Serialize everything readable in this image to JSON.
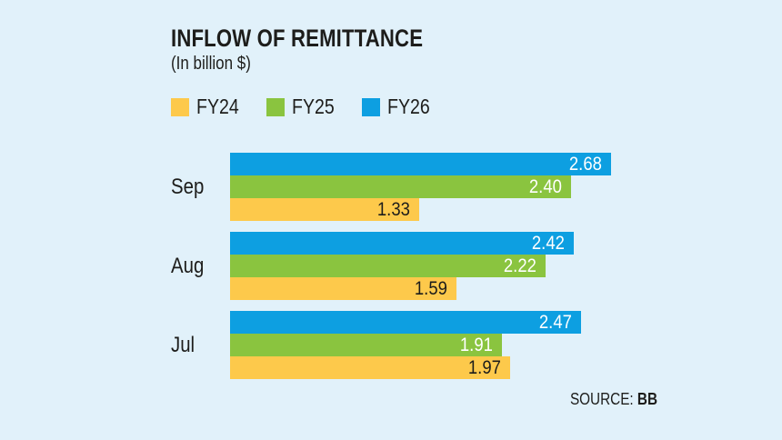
{
  "header": {
    "title": "INFLOW OF REMITTANCE",
    "subtitle": "(In billion $)"
  },
  "legend": {
    "position": "top-left",
    "items": [
      {
        "label": "FY24",
        "color": "#FDC94B"
      },
      {
        "label": "FY25",
        "color": "#8AC43F"
      },
      {
        "label": "FY26",
        "color": "#0D9FE1"
      }
    ]
  },
  "chart_data": {
    "type": "bar",
    "orientation": "horizontal",
    "title": "INFLOW OF REMITTANCE",
    "subtitle": "(In billion $)",
    "unit": "billion $",
    "xlabel": "",
    "ylabel": "",
    "categories": [
      "Sep",
      "Aug",
      "Jul"
    ],
    "series": [
      {
        "name": "FY26",
        "color": "#0D9FE1",
        "label_color": "#FFFFFF",
        "values": [
          2.68,
          2.42,
          2.47
        ]
      },
      {
        "name": "FY25",
        "color": "#8AC43F",
        "label_color": "#FFFFFF",
        "values": [
          2.4,
          2.22,
          1.91
        ]
      },
      {
        "name": "FY24",
        "color": "#FDC94B",
        "label_color": "#1D1D1B",
        "values": [
          1.33,
          1.59,
          1.97
        ]
      }
    ],
    "xlim": [
      0,
      2.68
    ],
    "grid": false,
    "value_label_position": "inside-end",
    "legend_position": "top-left"
  },
  "source": {
    "label": "SOURCE:",
    "value": "BB"
  },
  "colors": {
    "background": "#E1F1FA",
    "text": "#1D1D1B"
  }
}
